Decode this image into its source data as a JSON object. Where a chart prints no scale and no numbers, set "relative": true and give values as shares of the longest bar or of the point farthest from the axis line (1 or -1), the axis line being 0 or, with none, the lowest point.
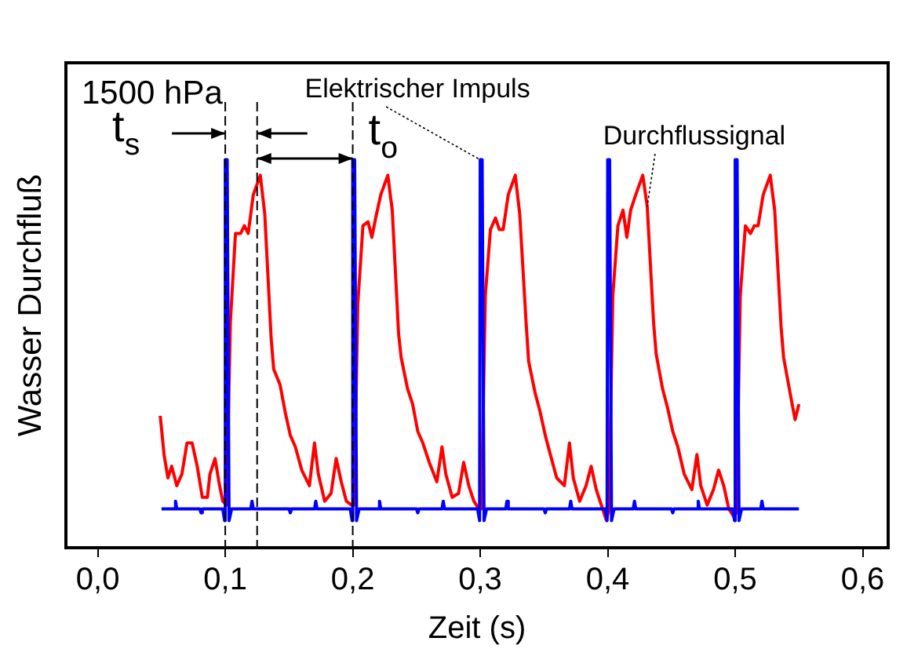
{
  "chart_data": {
    "type": "line",
    "relative": true,
    "xlabel": "Zeit (s)",
    "ylabel": "Wasser Durchfluß",
    "xlim": [
      -0.025,
      0.62
    ],
    "xticks": [
      {
        "value": 0,
        "label": "0,0"
      },
      {
        "value": 0.1,
        "label": "0,1"
      },
      {
        "value": 0.2,
        "label": "0,2"
      },
      {
        "value": 0.3,
        "label": "0,3"
      },
      {
        "value": 0.4,
        "label": "0,4"
      },
      {
        "value": 0.5,
        "label": "0,5"
      },
      {
        "value": 0.6,
        "label": "0,6"
      }
    ],
    "grid": false,
    "legend": false,
    "marker": "none",
    "line_style": "solid",
    "annotations": [
      "1500 hPa",
      "t$_{s}$",
      "t$_{o}$"
    ],
    "ref_lines": [
      {
        "axis": "x",
        "value": 0.1,
        "line_style": "dashed"
      },
      {
        "axis": "x",
        "value": 0.125,
        "line_style": "dashed"
      },
      {
        "axis": "x",
        "value": 0.2,
        "line_style": "dashed"
      }
    ],
    "series": [
      {
        "name": "Elektrischer Impuls",
        "color": "#0000ff",
        "x": [
          0.05,
          0.06,
          0.061,
          0.062,
          0.08,
          0.081,
          0.082,
          0.098,
          0.0995,
          0.1,
          0.1015,
          0.103,
          0.105,
          0.12,
          0.121,
          0.122,
          0.15,
          0.151,
          0.152,
          0.17,
          0.171,
          0.172,
          0.198,
          0.1995,
          0.2,
          0.2015,
          0.203,
          0.205,
          0.22,
          0.221,
          0.222,
          0.25,
          0.251,
          0.252,
          0.27,
          0.271,
          0.272,
          0.298,
          0.2995,
          0.3,
          0.3015,
          0.303,
          0.305,
          0.32,
          0.321,
          0.322,
          0.35,
          0.351,
          0.352,
          0.37,
          0.371,
          0.372,
          0.398,
          0.3995,
          0.4,
          0.4015,
          0.403,
          0.405,
          0.42,
          0.421,
          0.422,
          0.45,
          0.451,
          0.452,
          0.47,
          0.471,
          0.472,
          0.498,
          0.4995,
          0.5,
          0.5015,
          0.503,
          0.505,
          0.52,
          0.521,
          0.522,
          0.55
        ],
        "values": [
          0.1,
          0.1,
          0.12,
          0.1,
          0.1,
          0.09,
          0.1,
          0.1,
          0.07,
          1,
          1,
          0.07,
          0.1,
          0.1,
          0.12,
          0.1,
          0.1,
          0.09,
          0.1,
          0.1,
          0.12,
          0.1,
          0.1,
          0.07,
          1,
          1,
          0.07,
          0.1,
          0.1,
          0.12,
          0.1,
          0.1,
          0.09,
          0.1,
          0.1,
          0.12,
          0.1,
          0.1,
          0.07,
          1,
          1,
          0.07,
          0.1,
          0.1,
          0.12,
          0.1,
          0.1,
          0.09,
          0.1,
          0.1,
          0.12,
          0.1,
          0.1,
          0.07,
          1,
          1,
          0.07,
          0.1,
          0.1,
          0.12,
          0.1,
          0.1,
          0.09,
          0.1,
          0.1,
          0.12,
          0.1,
          0.1,
          0.07,
          1,
          1,
          0.07,
          0.1,
          0.1,
          0.12,
          0.1,
          0.1
        ]
      },
      {
        "name": "Durchflussignal",
        "color": "#ff0000",
        "x": [
          0.049,
          0.052,
          0.055,
          0.058,
          0.062,
          0.066,
          0.07,
          0.074,
          0.078,
          0.082,
          0.086,
          0.088,
          0.092,
          0.095,
          0.098,
          0.101,
          0.104,
          0.108,
          0.112,
          0.115,
          0.118,
          0.122,
          0.1275,
          0.131,
          0.136,
          0.138,
          0.143,
          0.147,
          0.151,
          0.155,
          0.16,
          0.166,
          0.17,
          0.173,
          0.178,
          0.183,
          0.187,
          0.191,
          0.195,
          0.199,
          0.201,
          0.204,
          0.208,
          0.212,
          0.215,
          0.218,
          0.222,
          0.2275,
          0.231,
          0.236,
          0.238,
          0.243,
          0.247,
          0.251,
          0.255,
          0.26,
          0.266,
          0.27,
          0.273,
          0.278,
          0.283,
          0.287,
          0.291,
          0.295,
          0.299,
          0.301,
          0.304,
          0.308,
          0.312,
          0.315,
          0.318,
          0.322,
          0.3275,
          0.331,
          0.336,
          0.338,
          0.343,
          0.347,
          0.351,
          0.355,
          0.36,
          0.366,
          0.37,
          0.373,
          0.378,
          0.383,
          0.387,
          0.391,
          0.395,
          0.399,
          0.401,
          0.404,
          0.408,
          0.412,
          0.415,
          0.418,
          0.422,
          0.4275,
          0.431,
          0.436,
          0.438,
          0.443,
          0.447,
          0.451,
          0.455,
          0.46,
          0.466,
          0.47,
          0.473,
          0.478,
          0.483,
          0.487,
          0.491,
          0.495,
          0.499,
          0.501,
          0.504,
          0.508,
          0.512,
          0.515,
          0.518,
          0.522,
          0.5275,
          0.531,
          0.536,
          0.538,
          0.543,
          0.547,
          0.55
        ],
        "values": [
          0.34,
          0.24,
          0.18,
          0.21,
          0.16,
          0.19,
          0.27,
          0.27,
          0.21,
          0.13,
          0.13,
          0.19,
          0.23,
          0.17,
          0.12,
          0.11,
          0.58,
          0.81,
          0.81,
          0.83,
          0.81,
          0.91,
          0.96,
          0.86,
          0.54,
          0.46,
          0.42,
          0.35,
          0.29,
          0.26,
          0.2,
          0.16,
          0.27,
          0.19,
          0.12,
          0.14,
          0.23,
          0.17,
          0.12,
          0.11,
          0.11,
          0.63,
          0.83,
          0.84,
          0.8,
          0.85,
          0.91,
          0.96,
          0.87,
          0.55,
          0.49,
          0.41,
          0.37,
          0.3,
          0.27,
          0.22,
          0.17,
          0.26,
          0.19,
          0.13,
          0.14,
          0.22,
          0.16,
          0.12,
          0.1,
          0.1,
          0.65,
          0.82,
          0.85,
          0.82,
          0.82,
          0.91,
          0.96,
          0.86,
          0.58,
          0.48,
          0.4,
          0.35,
          0.29,
          0.24,
          0.18,
          0.16,
          0.27,
          0.18,
          0.12,
          0.16,
          0.21,
          0.15,
          0.11,
          0.07,
          0.1,
          0.65,
          0.83,
          0.87,
          0.8,
          0.87,
          0.91,
          0.96,
          0.88,
          0.58,
          0.5,
          0.41,
          0.36,
          0.3,
          0.26,
          0.19,
          0.15,
          0.24,
          0.16,
          0.11,
          0.15,
          0.2,
          0.16,
          0.1,
          0.08,
          0.09,
          0.65,
          0.83,
          0.81,
          0.83,
          0.83,
          0.91,
          0.96,
          0.87,
          0.57,
          0.49,
          0.4,
          0.33,
          0.37
        ]
      }
    ]
  }
}
